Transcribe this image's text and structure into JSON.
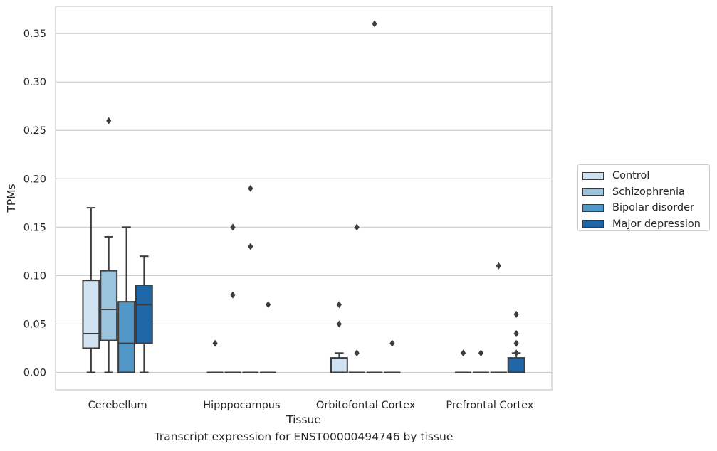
{
  "chart_data": {
    "type": "boxplot",
    "xlabel": "Tissue",
    "ylabel": "TPMs",
    "ylim": [
      -0.018,
      0.378
    ],
    "yticks": [
      "0.00",
      "0.05",
      "0.10",
      "0.15",
      "0.20",
      "0.25",
      "0.30",
      "0.35"
    ],
    "ytick_values": [
      0,
      0.05,
      0.1,
      0.15,
      0.2,
      0.25,
      0.3,
      0.35
    ],
    "grid": "horizontal",
    "legend_position": "right",
    "categories": [
      "Cerebellum",
      "Hipppocampus",
      "Orbitofontal Cortex",
      "Prefrontal Cortex"
    ],
    "series": [
      {
        "name": "Control",
        "color": "#d0e1f2",
        "boxes": [
          {
            "whislo": 0.0,
            "q1": 0.025,
            "med": 0.04,
            "q3": 0.095,
            "whishi": 0.17,
            "fliers": []
          },
          {
            "whislo": 0.0,
            "q1": 0.0,
            "med": 0.0,
            "q3": 0.0,
            "whishi": 0.0,
            "fliers": [
              0.03
            ]
          },
          {
            "whislo": 0.0,
            "q1": 0.0,
            "med": 0.0,
            "q3": 0.015,
            "whishi": 0.02,
            "fliers": [
              0.07,
              0.05
            ]
          },
          {
            "whislo": 0.0,
            "q1": 0.0,
            "med": 0.0,
            "q3": 0.0,
            "whishi": 0.0,
            "fliers": [
              0.02
            ]
          }
        ]
      },
      {
        "name": "Schizophrenia",
        "color": "#9cc3de",
        "boxes": [
          {
            "whislo": 0.0,
            "q1": 0.033,
            "med": 0.065,
            "q3": 0.105,
            "whishi": 0.14,
            "fliers": [
              0.26
            ]
          },
          {
            "whislo": 0.0,
            "q1": 0.0,
            "med": 0.0,
            "q3": 0.0,
            "whishi": 0.0,
            "fliers": [
              0.15,
              0.08
            ]
          },
          {
            "whislo": 0.0,
            "q1": 0.0,
            "med": 0.0,
            "q3": 0.0,
            "whishi": 0.0,
            "fliers": [
              0.15,
              0.02
            ]
          },
          {
            "whislo": 0.0,
            "q1": 0.0,
            "med": 0.0,
            "q3": 0.0,
            "whishi": 0.0,
            "fliers": [
              0.02
            ]
          }
        ]
      },
      {
        "name": "Bipolar disorder",
        "color": "#5096c7",
        "boxes": [
          {
            "whislo": 0.0,
            "q1": 0.0,
            "med": 0.03,
            "q3": 0.073,
            "whishi": 0.15,
            "fliers": []
          },
          {
            "whislo": 0.0,
            "q1": 0.0,
            "med": 0.0,
            "q3": 0.0,
            "whishi": 0.0,
            "fliers": [
              0.19,
              0.13
            ]
          },
          {
            "whislo": 0.0,
            "q1": 0.0,
            "med": 0.0,
            "q3": 0.0,
            "whishi": 0.0,
            "fliers": [
              0.36
            ]
          },
          {
            "whislo": 0.0,
            "q1": 0.0,
            "med": 0.0,
            "q3": 0.0,
            "whishi": 0.0,
            "fliers": [
              0.11
            ]
          }
        ]
      },
      {
        "name": "Major depression",
        "color": "#2167a8",
        "boxes": [
          {
            "whislo": 0.0,
            "q1": 0.03,
            "med": 0.07,
            "q3": 0.09,
            "whishi": 0.12,
            "fliers": []
          },
          {
            "whislo": 0.0,
            "q1": 0.0,
            "med": 0.0,
            "q3": 0.0,
            "whishi": 0.0,
            "fliers": [
              0.07
            ]
          },
          {
            "whislo": 0.0,
            "q1": 0.0,
            "med": 0.0,
            "q3": 0.0,
            "whishi": 0.0,
            "fliers": [
              0.03
            ]
          },
          {
            "whislo": 0.0,
            "q1": 0.0,
            "med": 0.0,
            "q3": 0.015,
            "whishi": 0.02,
            "fliers": [
              0.06,
              0.04,
              0.03,
              0.02
            ]
          }
        ]
      }
    ],
    "caption": "Transcript expression for ENST00000494746 by tissue"
  }
}
